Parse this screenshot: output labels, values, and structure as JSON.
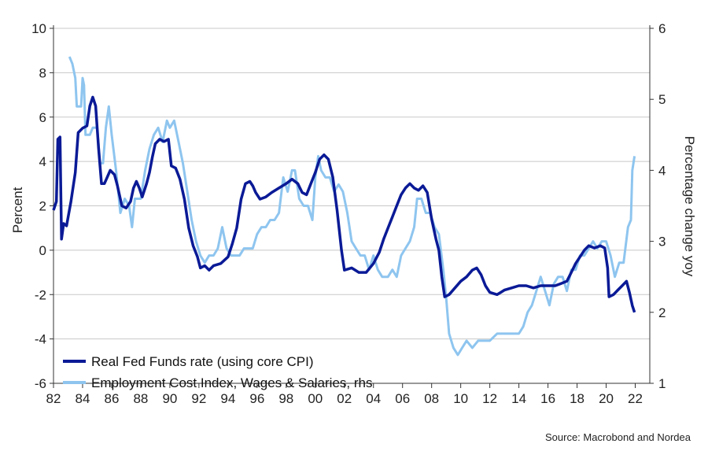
{
  "chart_data": {
    "type": "line",
    "ylabel": "Percent",
    "ylabel_right": "Percentage change yoy",
    "ylim": [
      -6,
      10
    ],
    "ylim_right": [
      1,
      6
    ],
    "yticks": [
      10,
      8,
      6,
      4,
      2,
      0,
      -2,
      -4,
      -6
    ],
    "yticks_right": [
      6,
      5,
      4,
      3,
      2,
      1
    ],
    "xlim": [
      1982,
      2023
    ],
    "xticks": [
      {
        "year": 1982,
        "label": "82"
      },
      {
        "year": 1984,
        "label": "84"
      },
      {
        "year": 1986,
        "label": "86"
      },
      {
        "year": 1988,
        "label": "88"
      },
      {
        "year": 1990,
        "label": "90"
      },
      {
        "year": 1992,
        "label": "92"
      },
      {
        "year": 1994,
        "label": "94"
      },
      {
        "year": 1996,
        "label": "96"
      },
      {
        "year": 1998,
        "label": "98"
      },
      {
        "year": 2000,
        "label": "00"
      },
      {
        "year": 2002,
        "label": "02"
      },
      {
        "year": 2004,
        "label": "04"
      },
      {
        "year": 2006,
        "label": "06"
      },
      {
        "year": 2008,
        "label": "08"
      },
      {
        "year": 2010,
        "label": "10"
      },
      {
        "year": 2012,
        "label": "12"
      },
      {
        "year": 2014,
        "label": "14"
      },
      {
        "year": 2016,
        "label": "16"
      },
      {
        "year": 2018,
        "label": "18"
      },
      {
        "year": 2020,
        "label": "20"
      },
      {
        "year": 2022,
        "label": "22"
      }
    ],
    "grid": true,
    "legend_position": "bottom-left",
    "series": [
      {
        "name": "Real Fed Funds rate (using core CPI)",
        "axis": "left",
        "color": "#0a1a96",
        "points": [
          [
            1982.0,
            1.8
          ],
          [
            1982.2,
            2.2
          ],
          [
            1982.3,
            5.0
          ],
          [
            1982.45,
            5.1
          ],
          [
            1982.55,
            0.5
          ],
          [
            1982.7,
            1.2
          ],
          [
            1982.9,
            1.1
          ],
          [
            1983.2,
            2.2
          ],
          [
            1983.5,
            3.5
          ],
          [
            1983.7,
            5.3
          ],
          [
            1984.0,
            5.5
          ],
          [
            1984.3,
            5.6
          ],
          [
            1984.5,
            6.5
          ],
          [
            1984.7,
            6.9
          ],
          [
            1984.9,
            6.5
          ],
          [
            1985.1,
            4.6
          ],
          [
            1985.3,
            3.0
          ],
          [
            1985.5,
            3.0
          ],
          [
            1985.7,
            3.3
          ],
          [
            1985.9,
            3.6
          ],
          [
            1986.2,
            3.4
          ],
          [
            1986.4,
            2.9
          ],
          [
            1986.7,
            2.0
          ],
          [
            1987.0,
            1.9
          ],
          [
            1987.3,
            2.2
          ],
          [
            1987.5,
            2.8
          ],
          [
            1987.7,
            3.1
          ],
          [
            1987.9,
            2.8
          ],
          [
            1988.1,
            2.4
          ],
          [
            1988.4,
            3.0
          ],
          [
            1988.6,
            3.5
          ],
          [
            1988.8,
            4.2
          ],
          [
            1989.0,
            4.8
          ],
          [
            1989.3,
            5.0
          ],
          [
            1989.6,
            4.9
          ],
          [
            1989.9,
            5.0
          ],
          [
            1990.1,
            3.8
          ],
          [
            1990.4,
            3.7
          ],
          [
            1990.7,
            3.2
          ],
          [
            1991.0,
            2.3
          ],
          [
            1991.3,
            1.0
          ],
          [
            1991.6,
            0.2
          ],
          [
            1991.9,
            -0.3
          ],
          [
            1992.1,
            -0.8
          ],
          [
            1992.4,
            -0.7
          ],
          [
            1992.7,
            -0.9
          ],
          [
            1993.0,
            -0.7
          ],
          [
            1993.5,
            -0.6
          ],
          [
            1994.0,
            -0.3
          ],
          [
            1994.3,
            0.3
          ],
          [
            1994.6,
            1.0
          ],
          [
            1994.9,
            2.3
          ],
          [
            1995.2,
            3.0
          ],
          [
            1995.5,
            3.1
          ],
          [
            1995.7,
            2.9
          ],
          [
            1995.9,
            2.6
          ],
          [
            1996.2,
            2.3
          ],
          [
            1996.6,
            2.4
          ],
          [
            1997.0,
            2.6
          ],
          [
            1997.5,
            2.8
          ],
          [
            1998.0,
            3.0
          ],
          [
            1998.4,
            3.2
          ],
          [
            1998.8,
            3.0
          ],
          [
            1999.1,
            2.6
          ],
          [
            1999.4,
            2.5
          ],
          [
            1999.7,
            3.0
          ],
          [
            2000.0,
            3.5
          ],
          [
            2000.3,
            4.1
          ],
          [
            2000.6,
            4.3
          ],
          [
            2000.9,
            4.1
          ],
          [
            2001.2,
            3.3
          ],
          [
            2001.5,
            1.8
          ],
          [
            2001.8,
            0.0
          ],
          [
            2002.0,
            -0.9
          ],
          [
            2002.5,
            -0.8
          ],
          [
            2003.0,
            -1.0
          ],
          [
            2003.5,
            -1.0
          ],
          [
            2004.0,
            -0.6
          ],
          [
            2004.4,
            -0.1
          ],
          [
            2004.7,
            0.5
          ],
          [
            2005.0,
            1.0
          ],
          [
            2005.3,
            1.5
          ],
          [
            2005.6,
            2.0
          ],
          [
            2005.9,
            2.5
          ],
          [
            2006.2,
            2.8
          ],
          [
            2006.5,
            3.0
          ],
          [
            2006.8,
            2.8
          ],
          [
            2007.1,
            2.7
          ],
          [
            2007.4,
            2.9
          ],
          [
            2007.7,
            2.6
          ],
          [
            2008.0,
            1.4
          ],
          [
            2008.3,
            0.5
          ],
          [
            2008.5,
            0.0
          ],
          [
            2008.7,
            -1.2
          ],
          [
            2008.9,
            -2.1
          ],
          [
            2009.2,
            -2.0
          ],
          [
            2009.6,
            -1.7
          ],
          [
            2010.0,
            -1.4
          ],
          [
            2010.4,
            -1.2
          ],
          [
            2010.8,
            -0.9
          ],
          [
            2011.1,
            -0.8
          ],
          [
            2011.4,
            -1.1
          ],
          [
            2011.7,
            -1.6
          ],
          [
            2012.0,
            -1.9
          ],
          [
            2012.5,
            -2.0
          ],
          [
            2013.0,
            -1.8
          ],
          [
            2013.5,
            -1.7
          ],
          [
            2014.0,
            -1.6
          ],
          [
            2014.5,
            -1.6
          ],
          [
            2015.0,
            -1.7
          ],
          [
            2015.5,
            -1.6
          ],
          [
            2016.0,
            -1.6
          ],
          [
            2016.5,
            -1.6
          ],
          [
            2016.9,
            -1.5
          ],
          [
            2017.3,
            -1.4
          ],
          [
            2017.6,
            -1.0
          ],
          [
            2017.9,
            -0.6
          ],
          [
            2018.2,
            -0.3
          ],
          [
            2018.5,
            0.0
          ],
          [
            2018.8,
            0.2
          ],
          [
            2019.2,
            0.1
          ],
          [
            2019.6,
            0.2
          ],
          [
            2019.9,
            0.1
          ],
          [
            2020.1,
            -0.8
          ],
          [
            2020.2,
            -2.1
          ],
          [
            2020.5,
            -2.0
          ],
          [
            2020.8,
            -1.8
          ],
          [
            2021.1,
            -1.6
          ],
          [
            2021.4,
            -1.4
          ],
          [
            2021.6,
            -1.9
          ],
          [
            2021.8,
            -2.5
          ],
          [
            2021.95,
            -2.8
          ]
        ]
      },
      {
        "name": "Employment Cost Index, Wages & Salaries, rhs",
        "axis": "right",
        "color": "#8ec5ef",
        "points": [
          [
            1983.1,
            5.6
          ],
          [
            1983.3,
            5.5
          ],
          [
            1983.5,
            5.3
          ],
          [
            1983.6,
            4.9
          ],
          [
            1983.9,
            4.9
          ],
          [
            1984.0,
            5.3
          ],
          [
            1984.1,
            5.2
          ],
          [
            1984.2,
            4.5
          ],
          [
            1984.5,
            4.5
          ],
          [
            1984.7,
            4.6
          ],
          [
            1985.0,
            4.6
          ],
          [
            1985.2,
            4.1
          ],
          [
            1985.4,
            4.1
          ],
          [
            1985.6,
            4.6
          ],
          [
            1985.8,
            4.9
          ],
          [
            1986.0,
            4.5
          ],
          [
            1986.3,
            4.0
          ],
          [
            1986.6,
            3.4
          ],
          [
            1986.9,
            3.6
          ],
          [
            1987.2,
            3.5
          ],
          [
            1987.4,
            3.2
          ],
          [
            1987.6,
            3.6
          ],
          [
            1988.0,
            3.6
          ],
          [
            1988.3,
            4.0
          ],
          [
            1988.6,
            4.3
          ],
          [
            1988.9,
            4.5
          ],
          [
            1989.2,
            4.6
          ],
          [
            1989.5,
            4.4
          ],
          [
            1989.8,
            4.7
          ],
          [
            1990.0,
            4.6
          ],
          [
            1990.3,
            4.7
          ],
          [
            1990.6,
            4.4
          ],
          [
            1990.9,
            4.1
          ],
          [
            1991.2,
            3.7
          ],
          [
            1991.5,
            3.3
          ],
          [
            1991.8,
            3.0
          ],
          [
            1992.1,
            2.8
          ],
          [
            1992.4,
            2.7
          ],
          [
            1992.7,
            2.8
          ],
          [
            1993.0,
            2.8
          ],
          [
            1993.3,
            2.9
          ],
          [
            1993.6,
            3.2
          ],
          [
            1993.9,
            2.9
          ],
          [
            1994.2,
            2.8
          ],
          [
            1994.5,
            2.8
          ],
          [
            1994.8,
            2.8
          ],
          [
            1995.1,
            2.9
          ],
          [
            1995.4,
            2.9
          ],
          [
            1995.7,
            2.9
          ],
          [
            1996.0,
            3.1
          ],
          [
            1996.3,
            3.2
          ],
          [
            1996.6,
            3.2
          ],
          [
            1996.9,
            3.3
          ],
          [
            1997.2,
            3.3
          ],
          [
            1997.5,
            3.4
          ],
          [
            1997.8,
            3.9
          ],
          [
            1998.1,
            3.7
          ],
          [
            1998.4,
            4.0
          ],
          [
            1998.6,
            4.0
          ],
          [
            1998.9,
            3.6
          ],
          [
            1999.2,
            3.5
          ],
          [
            1999.5,
            3.5
          ],
          [
            1999.8,
            3.3
          ],
          [
            2000.0,
            3.9
          ],
          [
            2000.2,
            4.2
          ],
          [
            2000.4,
            4.0
          ],
          [
            2000.7,
            3.9
          ],
          [
            2001.0,
            3.9
          ],
          [
            2001.3,
            3.7
          ],
          [
            2001.6,
            3.8
          ],
          [
            2001.9,
            3.7
          ],
          [
            2002.2,
            3.4
          ],
          [
            2002.5,
            3.0
          ],
          [
            2002.8,
            2.9
          ],
          [
            2003.1,
            2.8
          ],
          [
            2003.4,
            2.8
          ],
          [
            2003.7,
            2.6
          ],
          [
            2004.0,
            2.8
          ],
          [
            2004.3,
            2.6
          ],
          [
            2004.6,
            2.5
          ],
          [
            2005.0,
            2.5
          ],
          [
            2005.3,
            2.6
          ],
          [
            2005.6,
            2.5
          ],
          [
            2005.9,
            2.8
          ],
          [
            2006.2,
            2.9
          ],
          [
            2006.5,
            3.0
          ],
          [
            2006.8,
            3.2
          ],
          [
            2007.0,
            3.6
          ],
          [
            2007.3,
            3.6
          ],
          [
            2007.6,
            3.4
          ],
          [
            2007.9,
            3.4
          ],
          [
            2008.2,
            3.2
          ],
          [
            2008.5,
            3.1
          ],
          [
            2008.8,
            2.6
          ],
          [
            2009.0,
            2.2
          ],
          [
            2009.2,
            1.7
          ],
          [
            2009.5,
            1.5
          ],
          [
            2009.8,
            1.4
          ],
          [
            2010.1,
            1.5
          ],
          [
            2010.4,
            1.6
          ],
          [
            2010.8,
            1.5
          ],
          [
            2011.2,
            1.6
          ],
          [
            2011.6,
            1.6
          ],
          [
            2012.0,
            1.6
          ],
          [
            2012.5,
            1.7
          ],
          [
            2013.0,
            1.7
          ],
          [
            2013.5,
            1.7
          ],
          [
            2014.0,
            1.7
          ],
          [
            2014.3,
            1.8
          ],
          [
            2014.6,
            2.0
          ],
          [
            2014.9,
            2.1
          ],
          [
            2015.2,
            2.3
          ],
          [
            2015.5,
            2.5
          ],
          [
            2015.8,
            2.3
          ],
          [
            2016.1,
            2.1
          ],
          [
            2016.4,
            2.4
          ],
          [
            2016.7,
            2.5
          ],
          [
            2017.0,
            2.5
          ],
          [
            2017.3,
            2.3
          ],
          [
            2017.6,
            2.6
          ],
          [
            2017.9,
            2.6
          ],
          [
            2018.2,
            2.8
          ],
          [
            2018.5,
            2.8
          ],
          [
            2018.8,
            2.9
          ],
          [
            2019.1,
            3.0
          ],
          [
            2019.4,
            2.9
          ],
          [
            2019.7,
            3.0
          ],
          [
            2020.0,
            3.0
          ],
          [
            2020.3,
            2.8
          ],
          [
            2020.6,
            2.5
          ],
          [
            2020.9,
            2.7
          ],
          [
            2021.2,
            2.7
          ],
          [
            2021.5,
            3.2
          ],
          [
            2021.7,
            3.3
          ],
          [
            2021.8,
            4.0
          ],
          [
            2021.95,
            4.2
          ]
        ]
      }
    ],
    "source": "Source: Macrobond and Nordea"
  }
}
